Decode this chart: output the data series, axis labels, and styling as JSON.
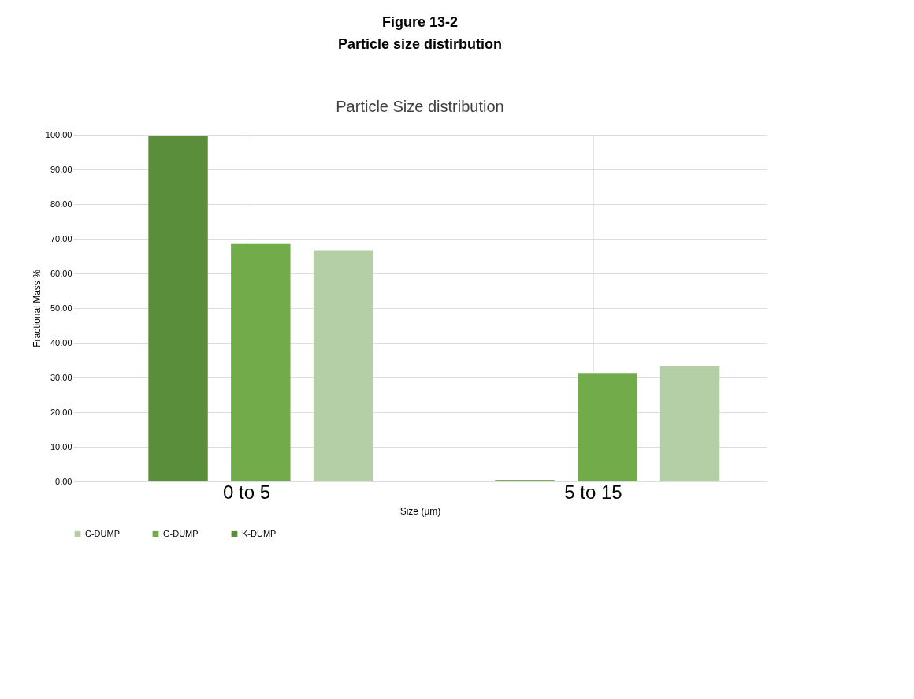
{
  "chart_data": {
    "type": "bar",
    "title": "Figure 13-2",
    "subtitle": "Particle size distirbution",
    "annotations": [
      "Particle Size distribution"
    ],
    "xlabel": "Size (µm)",
    "ylabel": "Fractional Mass %",
    "categories": [
      "0 to 5",
      "5 to 15"
    ],
    "series": [
      {
        "name": "K-DUMP",
        "color": "#5b8e3a",
        "values": [
          99.6,
          0.4
        ]
      },
      {
        "name": "G-DUMP",
        "color": "#72ac4a",
        "values": [
          68.7,
          31.3
        ]
      },
      {
        "name": "C-DUMP",
        "color": "#b4cfa6",
        "values": [
          66.7,
          33.3
        ]
      }
    ],
    "ylim": [
      0,
      100
    ],
    "yticks": [
      {
        "value": 0,
        "label": "0.00"
      },
      {
        "value": 10,
        "label": "10.00"
      },
      {
        "value": 20,
        "label": "20.00"
      },
      {
        "value": 30,
        "label": "30.00"
      },
      {
        "value": 40,
        "label": "40.00"
      },
      {
        "value": 50,
        "label": "50.00"
      },
      {
        "value": 60,
        "label": "60.00"
      },
      {
        "value": 70,
        "label": "70.00"
      },
      {
        "value": 80,
        "label": "80.00"
      },
      {
        "value": 90,
        "label": "90.00"
      },
      {
        "value": 100,
        "label": "100.00"
      }
    ],
    "grid": true,
    "legend": "bottom"
  }
}
